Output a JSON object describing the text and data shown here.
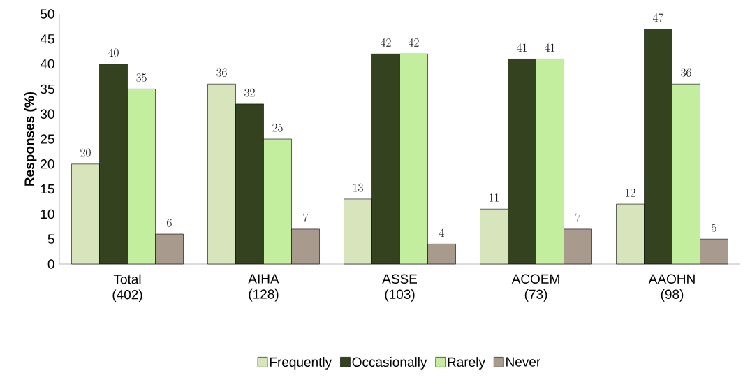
{
  "chart_data": {
    "type": "bar",
    "ylabel": "Responses (%)",
    "categories": [
      "Total (402)",
      "AIHA (128)",
      "ASSE (103)",
      "ACOEM (73)",
      "AAOHN (98)"
    ],
    "series": [
      {
        "name": "Frequently",
        "color": "#d8e4bc",
        "values": [
          20,
          36,
          13,
          11,
          12
        ]
      },
      {
        "name": "Occasionally",
        "color": "#344220",
        "values": [
          40,
          32,
          42,
          41,
          47
        ]
      },
      {
        "name": "Rarely",
        "color": "#c2ee9e",
        "values": [
          35,
          25,
          42,
          41,
          36
        ]
      },
      {
        "name": "Never",
        "color": "#a89a8c",
        "values": [
          6,
          7,
          4,
          7,
          5
        ]
      }
    ],
    "ylim": [
      0,
      50
    ],
    "yticks": [
      0,
      5,
      10,
      15,
      20,
      25,
      30,
      35,
      40,
      45,
      50
    ],
    "data_labels": true,
    "legend": "bottom",
    "grid": false
  }
}
